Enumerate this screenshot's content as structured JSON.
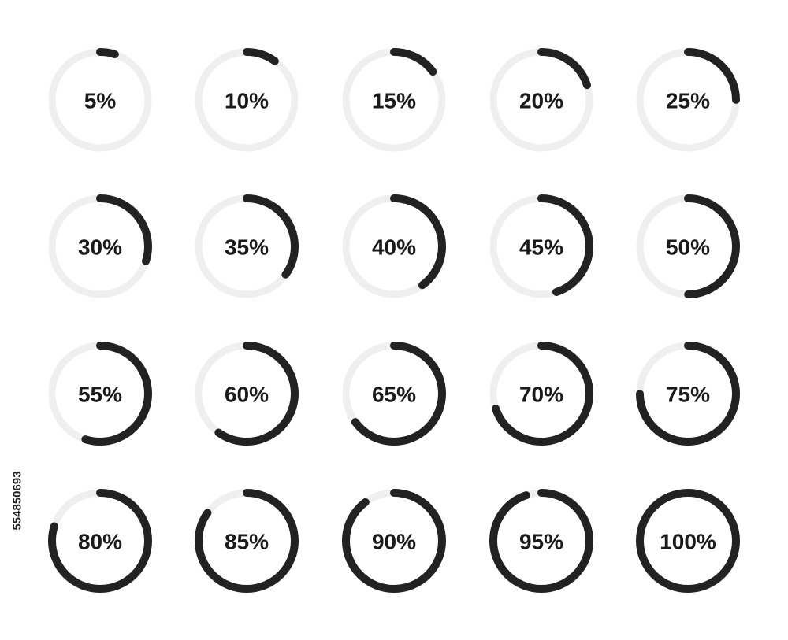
{
  "rings": [
    {
      "value": 5,
      "label": "5%"
    },
    {
      "value": 10,
      "label": "10%"
    },
    {
      "value": 15,
      "label": "15%"
    },
    {
      "value": 20,
      "label": "20%"
    },
    {
      "value": 25,
      "label": "25%"
    },
    {
      "value": 30,
      "label": "30%"
    },
    {
      "value": 35,
      "label": "35%"
    },
    {
      "value": 40,
      "label": "40%"
    },
    {
      "value": 45,
      "label": "45%"
    },
    {
      "value": 50,
      "label": "50%"
    },
    {
      "value": 55,
      "label": "55%"
    },
    {
      "value": 60,
      "label": "60%"
    },
    {
      "value": 65,
      "label": "65%"
    },
    {
      "value": 70,
      "label": "70%"
    },
    {
      "value": 75,
      "label": "75%"
    },
    {
      "value": 80,
      "label": "80%"
    },
    {
      "value": 85,
      "label": "85%"
    },
    {
      "value": 90,
      "label": "90%"
    },
    {
      "value": 95,
      "label": "95%"
    },
    {
      "value": 100,
      "label": "100%"
    }
  ],
  "side_text": "554850693"
}
